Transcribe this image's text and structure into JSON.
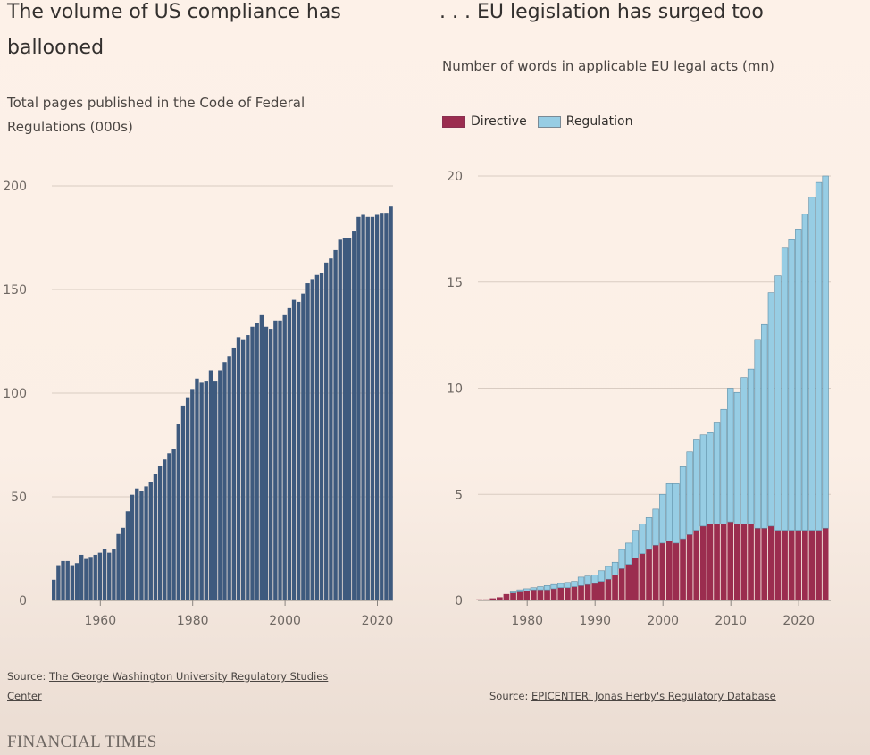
{
  "left": {
    "title_line1": "The volume of US compliance has",
    "title_line2": "ballooned",
    "subtitle_line1": "Total pages published in the Code of Federal",
    "subtitle_line2": "Regulations (000s)",
    "source_prefix": "Source:",
    "source_link_line1": "The George Washington University Regulatory Studies",
    "source_link_line2": "Center"
  },
  "right": {
    "title": ". . . EU legislation has surged too",
    "subtitle": "Number of words in applicable EU legal acts (mn)",
    "legend": [
      "Directive",
      "Regulation"
    ],
    "source_prefix": "Source:",
    "source_link": "EPICENTER: Jonas Herby's Regulatory Database"
  },
  "footer": {
    "brand": "FINANCIAL TIMES"
  },
  "colors": {
    "us_bar": "#3e5a7e",
    "directive": "#9b2d4f",
    "regulation": "#97cde4",
    "grid": "#d9ccc2"
  },
  "chart_data": [
    {
      "type": "bar",
      "title": "The volume of US compliance has ballooned",
      "subtitle": "Total pages published in the Code of Federal Regulations (000s)",
      "ylim": [
        0,
        200
      ],
      "yticks": [
        0,
        50,
        100,
        150,
        200
      ],
      "xticks": [
        1960,
        1980,
        2000,
        2020
      ],
      "x": [
        1950,
        1951,
        1952,
        1953,
        1954,
        1955,
        1956,
        1957,
        1958,
        1959,
        1960,
        1961,
        1962,
        1963,
        1964,
        1965,
        1966,
        1967,
        1968,
        1969,
        1970,
        1971,
        1972,
        1973,
        1974,
        1975,
        1976,
        1977,
        1978,
        1979,
        1980,
        1981,
        1982,
        1983,
        1984,
        1985,
        1986,
        1987,
        1988,
        1989,
        1990,
        1991,
        1992,
        1993,
        1994,
        1995,
        1996,
        1997,
        1998,
        1999,
        2000,
        2001,
        2002,
        2003,
        2004,
        2005,
        2006,
        2007,
        2008,
        2009,
        2010,
        2011,
        2012,
        2013,
        2014,
        2015,
        2016,
        2017,
        2018,
        2019,
        2020,
        2021,
        2022,
        2023
      ],
      "values": [
        10,
        17,
        19,
        19,
        17,
        18,
        22,
        20,
        21,
        22,
        23,
        25,
        23,
        25,
        32,
        35,
        43,
        51,
        54,
        53,
        55,
        57,
        61,
        65,
        68,
        71,
        73,
        85,
        94,
        98,
        102,
        107,
        105,
        106,
        111,
        106,
        111,
        115,
        118,
        122,
        127,
        126,
        128,
        132,
        134,
        138,
        132,
        131,
        135,
        135,
        138,
        141,
        145,
        144,
        148,
        153,
        155,
        157,
        158,
        163,
        165,
        169,
        174,
        175,
        175,
        178,
        185,
        186,
        185,
        185,
        186,
        187,
        187,
        190
      ]
    },
    {
      "type": "bar",
      "stacked": true,
      "title": ". . . EU legislation has surged too",
      "subtitle": "Number of words in applicable EU legal acts (mn)",
      "ylim": [
        0,
        20
      ],
      "yticks": [
        0,
        5,
        10,
        15,
        20
      ],
      "xticks": [
        1980,
        1990,
        2000,
        2010,
        2020
      ],
      "legend_position": "top-left",
      "x": [
        1973,
        1974,
        1975,
        1976,
        1977,
        1978,
        1979,
        1980,
        1981,
        1982,
        1983,
        1984,
        1985,
        1986,
        1987,
        1988,
        1989,
        1990,
        1991,
        1992,
        1993,
        1994,
        1995,
        1996,
        1997,
        1998,
        1999,
        2000,
        2001,
        2002,
        2003,
        2004,
        2005,
        2006,
        2007,
        2008,
        2009,
        2010,
        2011,
        2012,
        2013,
        2014,
        2015,
        2016,
        2017,
        2018,
        2019,
        2020,
        2021,
        2022,
        2023,
        2024
      ],
      "series": [
        {
          "name": "Directive",
          "values": [
            0.05,
            0.05,
            0.1,
            0.15,
            0.3,
            0.35,
            0.4,
            0.45,
            0.5,
            0.5,
            0.5,
            0.55,
            0.6,
            0.6,
            0.65,
            0.7,
            0.75,
            0.8,
            0.9,
            1.0,
            1.2,
            1.5,
            1.7,
            2.0,
            2.2,
            2.4,
            2.6,
            2.7,
            2.8,
            2.7,
            2.9,
            3.1,
            3.3,
            3.5,
            3.6,
            3.6,
            3.6,
            3.7,
            3.6,
            3.6,
            3.6,
            3.4,
            3.4,
            3.5,
            3.3,
            3.3,
            3.3,
            3.3,
            3.3,
            3.3,
            3.3,
            3.4
          ]
        },
        {
          "name": "Regulation",
          "values": [
            0,
            0,
            0,
            0,
            0,
            0.05,
            0.1,
            0.1,
            0.1,
            0.15,
            0.2,
            0.2,
            0.2,
            0.25,
            0.25,
            0.4,
            0.4,
            0.4,
            0.5,
            0.6,
            0.6,
            0.9,
            1.0,
            1.3,
            1.4,
            1.5,
            1.7,
            2.3,
            2.7,
            2.8,
            3.4,
            3.9,
            4.3,
            4.3,
            4.3,
            4.8,
            5.4,
            6.3,
            6.2,
            6.9,
            7.3,
            8.9,
            9.6,
            11.0,
            12.0,
            13.3,
            13.7,
            14.2,
            14.9,
            15.7,
            16.4,
            16.6
          ]
        }
      ]
    }
  ]
}
